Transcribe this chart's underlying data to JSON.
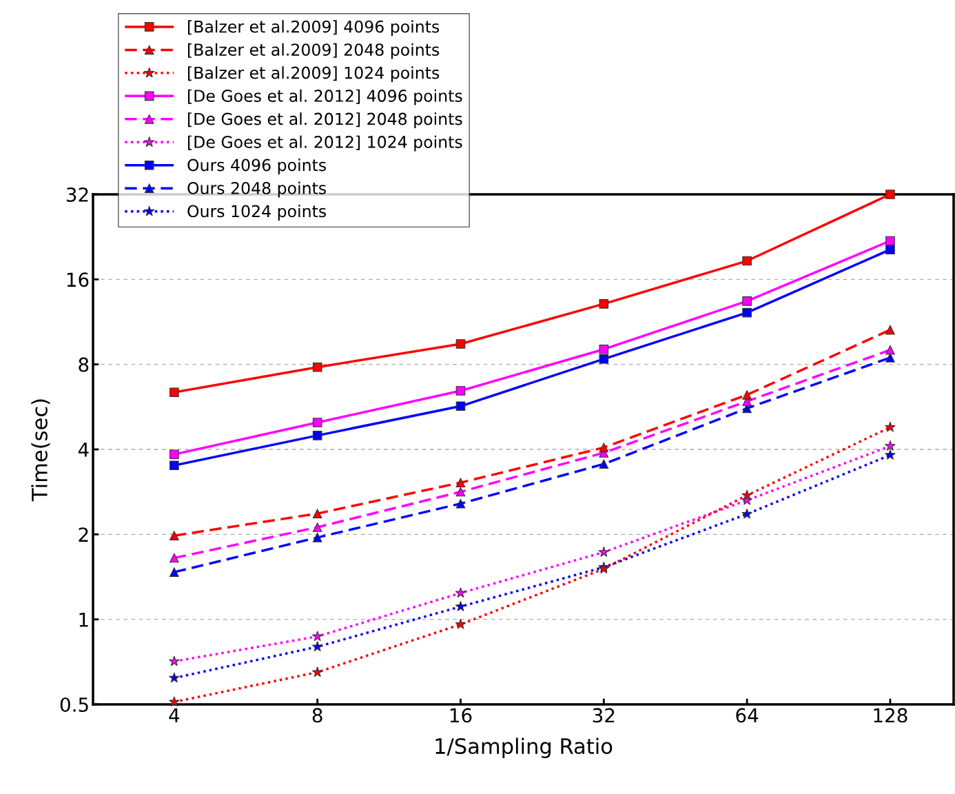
{
  "chart_data": {
    "type": "line",
    "xlabel": "1/Sampling Ratio",
    "ylabel": "Time(sec)",
    "log": "xy",
    "x": [
      4,
      8,
      16,
      32,
      64,
      128
    ],
    "xlim": [
      2.7,
      174
    ],
    "xticks": [
      4,
      8,
      16,
      32,
      64,
      128
    ],
    "ylim": [
      0.5,
      32
    ],
    "yticks": [
      0.5,
      1,
      2,
      4,
      8,
      16,
      32
    ],
    "grid": "y",
    "legend": "top left",
    "series": [
      {
        "name": "[Balzer et al.2009] 4096 points",
        "color": "#ff0000",
        "marker": "square",
        "line_style": "solid",
        "values": [
          6.37,
          7.82,
          9.45,
          13.1,
          18.6,
          32
        ]
      },
      {
        "name": "[Balzer et al.2009] 2048 points",
        "color": "#ff0000",
        "marker": "triangle",
        "line_style": "dashed",
        "values": [
          1.98,
          2.37,
          3.05,
          4.06,
          6.24,
          10.6
        ]
      },
      {
        "name": "[Balzer et al.2009] 1024 points",
        "color": "#ff0000",
        "marker": "star",
        "line_style": "dotted",
        "values": [
          0.51,
          0.65,
          0.96,
          1.51,
          2.75,
          4.79
        ]
      },
      {
        "name": "[De Goes et al. 2012] 4096 points",
        "color": "#ff00ff",
        "marker": "square",
        "line_style": "solid",
        "values": [
          3.84,
          4.98,
          6.45,
          9.05,
          13.4,
          21.9
        ]
      },
      {
        "name": "[De Goes et al. 2012] 2048 points",
        "color": "#ff00ff",
        "marker": "triangle",
        "line_style": "dashed",
        "values": [
          1.65,
          2.12,
          2.83,
          3.89,
          5.92,
          9.0
        ]
      },
      {
        "name": "[De Goes et al. 2012] 1024 points",
        "color": "#ff00ff",
        "marker": "star",
        "line_style": "dotted",
        "values": [
          0.71,
          0.87,
          1.24,
          1.73,
          2.64,
          4.11
        ]
      },
      {
        "name": "Ours 4096 points",
        "color": "#0000ff",
        "marker": "square",
        "line_style": "solid",
        "values": [
          3.51,
          4.48,
          5.69,
          8.36,
          12.2,
          20.4
        ]
      },
      {
        "name": "Ours 2048 points",
        "color": "#0000ff",
        "marker": "triangle",
        "line_style": "dashed",
        "values": [
          1.47,
          1.95,
          2.57,
          3.55,
          5.59,
          8.45
        ]
      },
      {
        "name": "Ours 1024 points",
        "color": "#0000ff",
        "marker": "star",
        "line_style": "dotted",
        "values": [
          0.62,
          0.8,
          1.11,
          1.53,
          2.36,
          3.82
        ]
      }
    ]
  }
}
